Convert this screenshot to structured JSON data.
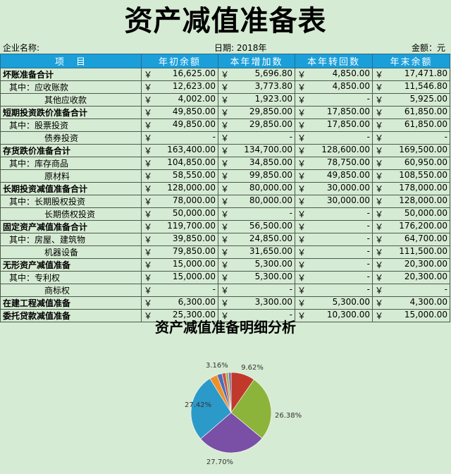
{
  "title": "资产减值准备表",
  "meta": {
    "company_label": "企业名称:",
    "date_label": "日期: 2018年",
    "unit_label": "金额：元"
  },
  "headers": [
    "项　目",
    "年初余额",
    "本年增加数",
    "本年转回数",
    "年末余额"
  ],
  "currency": "￥",
  "rows": [
    {
      "label": "坏账准备合计",
      "level": 0,
      "main": true,
      "v": [
        "16,625.00",
        "5,696.80",
        "4,850.00",
        "17,471.80"
      ]
    },
    {
      "label": "其中：应收账款",
      "level": 1,
      "main": false,
      "v": [
        "12,623.00",
        "3,773.80",
        "4,850.00",
        "11,546.80"
      ]
    },
    {
      "label": "其他应收款",
      "level": 2,
      "main": false,
      "v": [
        "4,002.00",
        "1,923.00",
        "-",
        "5,925.00"
      ]
    },
    {
      "label": "短期投资跌价准备合计",
      "level": 0,
      "main": true,
      "v": [
        "49,850.00",
        "29,850.00",
        "17,850.00",
        "61,850.00"
      ]
    },
    {
      "label": "其中：股票投资",
      "level": 1,
      "main": false,
      "v": [
        "49,850.00",
        "29,850.00",
        "17,850.00",
        "61,850.00"
      ]
    },
    {
      "label": "债券投资",
      "level": 2,
      "main": false,
      "v": [
        "-",
        "-",
        "-",
        "-"
      ]
    },
    {
      "label": "存货跌价准备合计",
      "level": 0,
      "main": true,
      "v": [
        "163,400.00",
        "134,700.00",
        "128,600.00",
        "169,500.00"
      ]
    },
    {
      "label": "其中：库存商品",
      "level": 1,
      "main": false,
      "v": [
        "104,850.00",
        "34,850.00",
        "78,750.00",
        "60,950.00"
      ]
    },
    {
      "label": "原材料",
      "level": 2,
      "main": false,
      "v": [
        "58,550.00",
        "99,850.00",
        "49,850.00",
        "108,550.00"
      ]
    },
    {
      "label": "长期投资减值准备合计",
      "level": 0,
      "main": true,
      "v": [
        "128,000.00",
        "80,000.00",
        "30,000.00",
        "178,000.00"
      ]
    },
    {
      "label": "其中：长期股权投资",
      "level": 1,
      "main": false,
      "v": [
        "78,000.00",
        "80,000.00",
        "30,000.00",
        "128,000.00"
      ]
    },
    {
      "label": "长期债权投资",
      "level": 2,
      "main": false,
      "v": [
        "50,000.00",
        "-",
        "-",
        "50,000.00"
      ]
    },
    {
      "label": "固定资产减值准备合计",
      "level": 0,
      "main": true,
      "v": [
        "119,700.00",
        "56,500.00",
        "-",
        "176,200.00"
      ]
    },
    {
      "label": "其中：房屋、建筑物",
      "level": 1,
      "main": false,
      "v": [
        "39,850.00",
        "24,850.00",
        "-",
        "64,700.00"
      ]
    },
    {
      "label": "机器设备",
      "level": 2,
      "main": false,
      "v": [
        "79,850.00",
        "31,650.00",
        "-",
        "111,500.00"
      ]
    },
    {
      "label": "无形资产减值准备",
      "level": 0,
      "main": true,
      "v": [
        "15,000.00",
        "5,300.00",
        "-",
        "20,300.00"
      ]
    },
    {
      "label": "其中：专利权",
      "level": 1,
      "main": false,
      "v": [
        "15,000.00",
        "5,300.00",
        "-",
        "20,300.00"
      ]
    },
    {
      "label": "商标权",
      "level": 2,
      "main": false,
      "v": [
        "-",
        "-",
        "-",
        "-"
      ]
    },
    {
      "label": "在建工程减值准备",
      "level": 0,
      "main": true,
      "v": [
        "6,300.00",
        "3,300.00",
        "5,300.00",
        "4,300.00"
      ]
    },
    {
      "label": "委托贷款减值准备",
      "level": 0,
      "main": true,
      "v": [
        "25,300.00",
        "-",
        "10,300.00",
        "15,000.00"
      ]
    }
  ],
  "chart_data": {
    "type": "pie",
    "title": "资产减值准备明细分析",
    "values": [
      9.62,
      26.38,
      27.7,
      27.42,
      3.16,
      2.0,
      1.5,
      1.2,
      1.02
    ],
    "labels": [
      "9.62%",
      "26.38%",
      "27.70%",
      "27.42%",
      "3.16%",
      "",
      "",
      "",
      ""
    ],
    "colors": [
      "#c0392b",
      "#8db43a",
      "#7a4fa6",
      "#2b9ac9",
      "#f0902a",
      "#4a6fb8",
      "#d0504a",
      "#9bb85a",
      "#8066a8"
    ]
  }
}
